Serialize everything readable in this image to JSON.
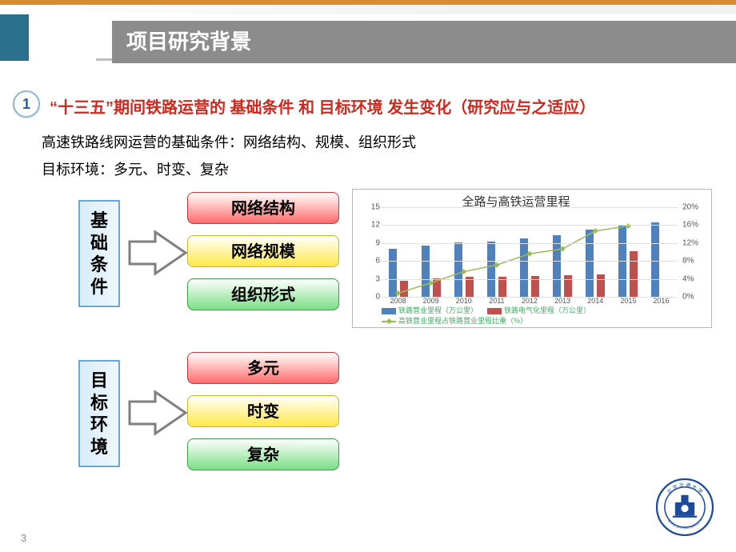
{
  "header": {
    "title": "项目研究背景",
    "accent_color": "#2a6f8c",
    "title_bg": "#8c8c8c",
    "underline_color": "#bfbfbf"
  },
  "topstripe_color": "#d98b2e",
  "section_number": "1",
  "subtitle": "“十三五”期间铁路运营的 基础条件 和 目标环境 发生变化（研究应与之适应）",
  "subtitle_color": "#cc2a1f",
  "desc1": "高速铁路线网运营的基础条件：网络结构、规模、组织形式",
  "desc2": "目标环境：多元、时变、复杂",
  "diagram": {
    "group1": {
      "vlabel": "基础条件",
      "items": [
        {
          "label": "网络结构",
          "style": "red"
        },
        {
          "label": "网络规模",
          "style": "yel"
        },
        {
          "label": "组织形式",
          "style": "grn"
        }
      ]
    },
    "group2": {
      "vlabel": "目标环境",
      "items": [
        {
          "label": "多元",
          "style": "red"
        },
        {
          "label": "时变",
          "style": "yel"
        },
        {
          "label": "复杂",
          "style": "grn"
        }
      ]
    },
    "arrow_stroke": "#7f7f7f",
    "vbox_border": "#6aa9d6",
    "vbox_bg_from": "#d8ecfb",
    "vbox_bg_to": "#eff7fd"
  },
  "chart": {
    "title": "全路与高铁运营里程",
    "categories": [
      "2008",
      "2009",
      "2010",
      "2011",
      "2012",
      "2013",
      "2014",
      "2015",
      "2016"
    ],
    "series_blue": {
      "label": "铁路营业里程（万公里）",
      "color": "#4f81bd",
      "values": [
        8.0,
        8.6,
        9.1,
        9.3,
        9.8,
        10.3,
        11.2,
        12.1,
        12.4
      ]
    },
    "series_red": {
      "label": "铁路电气化里程（万公里）",
      "color": "#c0504d",
      "values": [
        2.7,
        3.1,
        3.3,
        3.4,
        3.5,
        3.6,
        3.7,
        7.6,
        null
      ]
    },
    "series_line": {
      "label": "高铁营业里程占铁路营业里程比重（%）",
      "color": "#9bbb59",
      "values": [
        0.8,
        3.1,
        5.6,
        7.1,
        9.6,
        10.7,
        14.7,
        15.8,
        null
      ]
    },
    "y_left": {
      "min": 0,
      "max": 15,
      "step": 3,
      "ticks": [
        0,
        3,
        6,
        9,
        12,
        15
      ]
    },
    "y_right": {
      "min": 0,
      "max": 20,
      "step": 4,
      "ticks": [
        "0%",
        "4%",
        "8%",
        "12%",
        "16%",
        "20%"
      ]
    },
    "grid_color": "#e0e0e0",
    "background": "#ffffff",
    "bar_group_width": 0.6
  },
  "page_number": "3",
  "logo_ring_color": "#1d4b9c",
  "logo_text_top": "北京交通大学",
  "logo_text_bottom": "BEIJING JIAOTONG UNIVERSITY"
}
